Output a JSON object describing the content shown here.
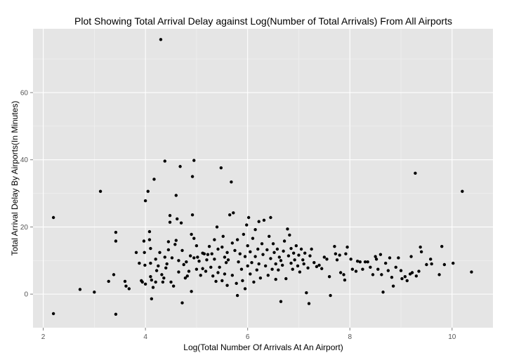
{
  "colors": {
    "panel_background": "#e5e5e5",
    "grid_major": "#ffffff",
    "grid_minor": "#f2f2f2",
    "point": "#000000"
  },
  "chart_data": {
    "type": "scatter",
    "title": "Plot Showing Total Arrival Delay against Log(Number of Total Arrivals) From All Airports",
    "xlabel": "Log(Total Number Of Arrivals At An Airport)",
    "ylabel": "Total Arrival Delay By Airports(In Minutes)",
    "xlim": [
      1.8,
      10.8
    ],
    "ylim": [
      -10,
      79
    ],
    "x_ticks": [
      2,
      4,
      6,
      8,
      10
    ],
    "y_ticks": [
      0,
      20,
      40,
      60
    ],
    "grid": true,
    "legend": "none",
    "points": [
      [
        2.2,
        22.8
      ],
      [
        2.2,
        -5.8
      ],
      [
        2.72,
        1.4
      ],
      [
        3.0,
        0.6
      ],
      [
        3.12,
        30.6
      ],
      [
        3.28,
        3.8
      ],
      [
        3.38,
        5.8
      ],
      [
        3.42,
        18.4
      ],
      [
        3.42,
        15.8
      ],
      [
        3.42,
        -6.0
      ],
      [
        3.6,
        3.8
      ],
      [
        3.62,
        2.4
      ],
      [
        3.68,
        1.6
      ],
      [
        3.82,
        12.4
      ],
      [
        3.88,
        9.2
      ],
      [
        3.92,
        4.0
      ],
      [
        3.94,
        3.6
      ],
      [
        3.97,
        15.8
      ],
      [
        3.98,
        12.4
      ],
      [
        3.99,
        8.6
      ],
      [
        4.0,
        27.8
      ],
      [
        4.0,
        3.0
      ],
      [
        4.05,
        30.6
      ],
      [
        4.08,
        18.6
      ],
      [
        4.08,
        16.2
      ],
      [
        4.1,
        13.6
      ],
      [
        4.1,
        9.2
      ],
      [
        4.1,
        5.2
      ],
      [
        4.12,
        -1.4
      ],
      [
        4.12,
        4.2
      ],
      [
        4.15,
        2.0
      ],
      [
        4.17,
        34.2
      ],
      [
        4.2,
        3.6
      ],
      [
        4.2,
        10.4
      ],
      [
        4.22,
        7.0
      ],
      [
        4.25,
        8.4
      ],
      [
        4.28,
        12.4
      ],
      [
        4.3,
        75.8
      ],
      [
        4.32,
        5.8
      ],
      [
        4.34,
        3.6
      ],
      [
        4.36,
        4.8
      ],
      [
        4.38,
        39.6
      ],
      [
        4.38,
        11.0
      ],
      [
        4.4,
        7.8
      ],
      [
        4.42,
        9.0
      ],
      [
        4.45,
        15.6
      ],
      [
        4.45,
        13.2
      ],
      [
        4.48,
        23.4
      ],
      [
        4.48,
        21.4
      ],
      [
        4.5,
        3.6
      ],
      [
        4.52,
        10.8
      ],
      [
        4.55,
        2.4
      ],
      [
        4.58,
        14.8
      ],
      [
        4.6,
        29.4
      ],
      [
        4.6,
        16.0
      ],
      [
        4.62,
        22.4
      ],
      [
        4.65,
        10.0
      ],
      [
        4.65,
        6.6
      ],
      [
        4.68,
        38.0
      ],
      [
        4.7,
        21.2
      ],
      [
        4.72,
        13.0
      ],
      [
        4.72,
        -2.6
      ],
      [
        4.75,
        8.8
      ],
      [
        4.78,
        4.8
      ],
      [
        4.8,
        9.6
      ],
      [
        4.82,
        5.4
      ],
      [
        4.85,
        6.8
      ],
      [
        4.88,
        11.4
      ],
      [
        4.9,
        0.8
      ],
      [
        4.9,
        17.8
      ],
      [
        4.92,
        35.0
      ],
      [
        4.92,
        23.6
      ],
      [
        4.95,
        39.8
      ],
      [
        4.95,
        16.6
      ],
      [
        4.95,
        10.8
      ],
      [
        5.0,
        7.4
      ],
      [
        5.0,
        14.4
      ],
      [
        5.02,
        11.0
      ],
      [
        5.05,
        9.8
      ],
      [
        5.08,
        5.6
      ],
      [
        5.12,
        12.2
      ],
      [
        5.12,
        7.6
      ],
      [
        5.15,
        12.0
      ],
      [
        5.18,
        6.8
      ],
      [
        5.2,
        10.2
      ],
      [
        5.22,
        11.8
      ],
      [
        5.25,
        14.2
      ],
      [
        5.28,
        8.0
      ],
      [
        5.3,
        12.0
      ],
      [
        5.32,
        5.4
      ],
      [
        5.35,
        16.2
      ],
      [
        5.35,
        10.4
      ],
      [
        5.38,
        3.8
      ],
      [
        5.4,
        20.0
      ],
      [
        5.42,
        13.4
      ],
      [
        5.42,
        6.4
      ],
      [
        5.45,
        8.0
      ],
      [
        5.48,
        37.6
      ],
      [
        5.5,
        14.0
      ],
      [
        5.5,
        4.0
      ],
      [
        5.52,
        17.2
      ],
      [
        5.55,
        11.0
      ],
      [
        5.55,
        6.0
      ],
      [
        5.58,
        9.4
      ],
      [
        5.6,
        12.4
      ],
      [
        5.6,
        2.6
      ],
      [
        5.62,
        10.2
      ],
      [
        5.65,
        23.6
      ],
      [
        5.68,
        33.4
      ],
      [
        5.7,
        15.2
      ],
      [
        5.7,
        5.6
      ],
      [
        5.72,
        24.2
      ],
      [
        5.75,
        13.0
      ],
      [
        5.78,
        3.2
      ],
      [
        5.8,
        16.2
      ],
      [
        5.8,
        -0.4
      ],
      [
        5.82,
        9.6
      ],
      [
        5.85,
        12.0
      ],
      [
        5.88,
        7.4
      ],
      [
        5.9,
        4.0
      ],
      [
        5.92,
        17.8
      ],
      [
        5.95,
        11.2
      ],
      [
        5.95,
        1.6
      ],
      [
        5.98,
        20.6
      ],
      [
        6.0,
        8.4
      ],
      [
        6.0,
        14.4
      ],
      [
        6.02,
        22.8
      ],
      [
        6.05,
        12.6
      ],
      [
        6.05,
        6.0
      ],
      [
        6.08,
        9.4
      ],
      [
        6.1,
        16.6
      ],
      [
        6.12,
        3.6
      ],
      [
        6.15,
        11.2
      ],
      [
        6.15,
        19.2
      ],
      [
        6.18,
        7.2
      ],
      [
        6.2,
        13.4
      ],
      [
        6.22,
        21.6
      ],
      [
        6.22,
        9.0
      ],
      [
        6.25,
        4.8
      ],
      [
        6.28,
        15.0
      ],
      [
        6.3,
        11.8
      ],
      [
        6.32,
        22.0
      ],
      [
        6.35,
        8.4
      ],
      [
        6.38,
        13.2
      ],
      [
        6.4,
        5.6
      ],
      [
        6.42,
        17.2
      ],
      [
        6.45,
        10.6
      ],
      [
        6.45,
        22.8
      ],
      [
        6.48,
        7.4
      ],
      [
        6.5,
        15.0
      ],
      [
        6.52,
        12.4
      ],
      [
        6.55,
        9.0
      ],
      [
        6.55,
        4.4
      ],
      [
        6.58,
        13.4
      ],
      [
        6.6,
        7.2
      ],
      [
        6.62,
        11.0
      ],
      [
        6.65,
        10.0
      ],
      [
        6.65,
        -2.2
      ],
      [
        6.68,
        8.6
      ],
      [
        6.7,
        12.8
      ],
      [
        6.72,
        15.8
      ],
      [
        6.75,
        4.6
      ],
      [
        6.78,
        19.4
      ],
      [
        6.8,
        11.4
      ],
      [
        6.82,
        17.6
      ],
      [
        6.85,
        13.6
      ],
      [
        6.85,
        9.2
      ],
      [
        6.88,
        7.4
      ],
      [
        6.9,
        12.2
      ],
      [
        6.92,
        10.2
      ],
      [
        6.95,
        14.4
      ],
      [
        6.98,
        8.4
      ],
      [
        7.0,
        11.6
      ],
      [
        7.02,
        6.6
      ],
      [
        7.05,
        13.4
      ],
      [
        7.08,
        10.2
      ],
      [
        7.1,
        9.0
      ],
      [
        7.12,
        12.2
      ],
      [
        7.15,
        0.4
      ],
      [
        7.18,
        7.8
      ],
      [
        7.2,
        -2.8
      ],
      [
        7.22,
        11.4
      ],
      [
        7.25,
        13.4
      ],
      [
        7.3,
        9.4
      ],
      [
        7.35,
        8.2
      ],
      [
        7.4,
        8.6
      ],
      [
        7.45,
        7.6
      ],
      [
        7.5,
        11.0
      ],
      [
        7.55,
        10.4
      ],
      [
        7.6,
        5.2
      ],
      [
        7.62,
        -0.4
      ],
      [
        7.7,
        14.2
      ],
      [
        7.72,
        12.0
      ],
      [
        7.75,
        10.2
      ],
      [
        7.8,
        11.6
      ],
      [
        7.82,
        6.4
      ],
      [
        7.88,
        5.8
      ],
      [
        7.9,
        4.2
      ],
      [
        7.92,
        12.0
      ],
      [
        7.95,
        14.0
      ],
      [
        8.02,
        10.4
      ],
      [
        8.05,
        7.4
      ],
      [
        8.12,
        6.8
      ],
      [
        8.15,
        9.8
      ],
      [
        8.2,
        9.6
      ],
      [
        8.25,
        7.4
      ],
      [
        8.3,
        9.6
      ],
      [
        8.35,
        9.6
      ],
      [
        8.4,
        8.0
      ],
      [
        8.45,
        5.8
      ],
      [
        8.5,
        11.2
      ],
      [
        8.52,
        10.4
      ],
      [
        8.55,
        7.4
      ],
      [
        8.6,
        11.8
      ],
      [
        8.62,
        5.8
      ],
      [
        8.65,
        0.6
      ],
      [
        8.7,
        9.2
      ],
      [
        8.75,
        7.0
      ],
      [
        8.78,
        10.8
      ],
      [
        8.82,
        5.0
      ],
      [
        8.85,
        2.4
      ],
      [
        8.9,
        8.0
      ],
      [
        8.95,
        10.8
      ],
      [
        9.0,
        7.0
      ],
      [
        9.02,
        4.6
      ],
      [
        9.08,
        5.2
      ],
      [
        9.12,
        4.0
      ],
      [
        9.18,
        6.0
      ],
      [
        9.2,
        11.2
      ],
      [
        9.22,
        6.4
      ],
      [
        9.28,
        36.0
      ],
      [
        9.3,
        5.4
      ],
      [
        9.35,
        6.8
      ],
      [
        9.38,
        14.0
      ],
      [
        9.4,
        12.6
      ],
      [
        9.5,
        8.8
      ],
      [
        9.58,
        10.4
      ],
      [
        9.6,
        9.0
      ],
      [
        9.75,
        5.8
      ],
      [
        9.8,
        14.2
      ],
      [
        9.85,
        8.8
      ],
      [
        10.02,
        9.2
      ],
      [
        10.2,
        30.6
      ],
      [
        10.38,
        6.6
      ]
    ]
  }
}
